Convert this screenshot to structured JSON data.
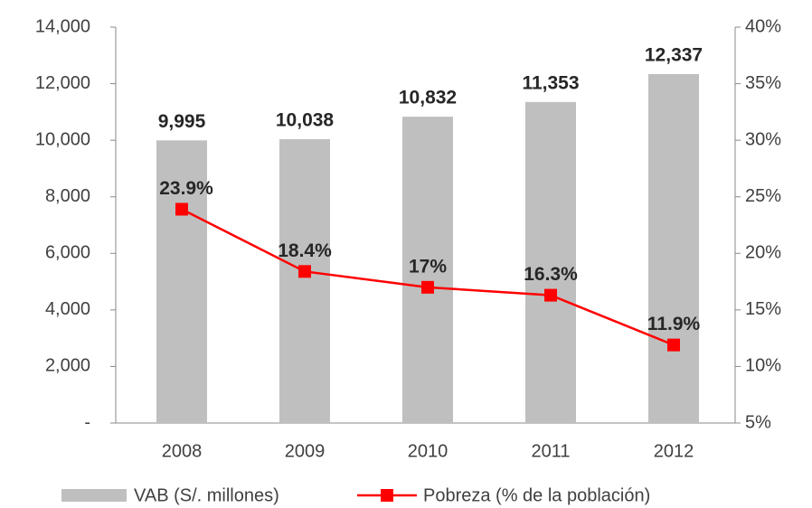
{
  "chart_data": {
    "type": "bar",
    "categories": [
      "2008",
      "2009",
      "2010",
      "2011",
      "2012"
    ],
    "series": [
      {
        "name": "VAB (S/. millones)",
        "color": "#bfbfbf",
        "values": [
          9995,
          10038,
          10832,
          11353,
          12337
        ],
        "value_labels": [
          "9,995",
          "10,038",
          "10,832",
          "11,353",
          "12,337"
        ]
      },
      {
        "name": "Pobreza (% de la población)",
        "type": "line",
        "axis": "y2",
        "color": "#ff0000",
        "values": [
          23.9,
          18.4,
          17,
          16.3,
          11.9
        ],
        "value_labels": [
          "23.9%",
          "18.4%",
          "17%",
          "16.3%",
          "11.9%"
        ]
      }
    ],
    "ylim": [
      0,
      14000
    ],
    "yticks": [
      {
        "value": 0,
        "label": "-"
      },
      {
        "value": 2000,
        "label": "2,000"
      },
      {
        "value": 4000,
        "label": "4,000"
      },
      {
        "value": 6000,
        "label": "6,000"
      },
      {
        "value": 8000,
        "label": "8,000"
      },
      {
        "value": 10000,
        "label": "10,000"
      },
      {
        "value": 12000,
        "label": "12,000"
      },
      {
        "value": 14000,
        "label": "14,000"
      }
    ],
    "y2lim": [
      5,
      40
    ],
    "y2ticks": [
      {
        "value": 5,
        "label": "5%"
      },
      {
        "value": 10,
        "label": "10%"
      },
      {
        "value": 15,
        "label": "15%"
      },
      {
        "value": 20,
        "label": "20%"
      },
      {
        "value": 25,
        "label": "25%"
      },
      {
        "value": 30,
        "label": "30%"
      },
      {
        "value": 35,
        "label": "35%"
      },
      {
        "value": 40,
        "label": "40%"
      }
    ],
    "legend": "bottom"
  }
}
